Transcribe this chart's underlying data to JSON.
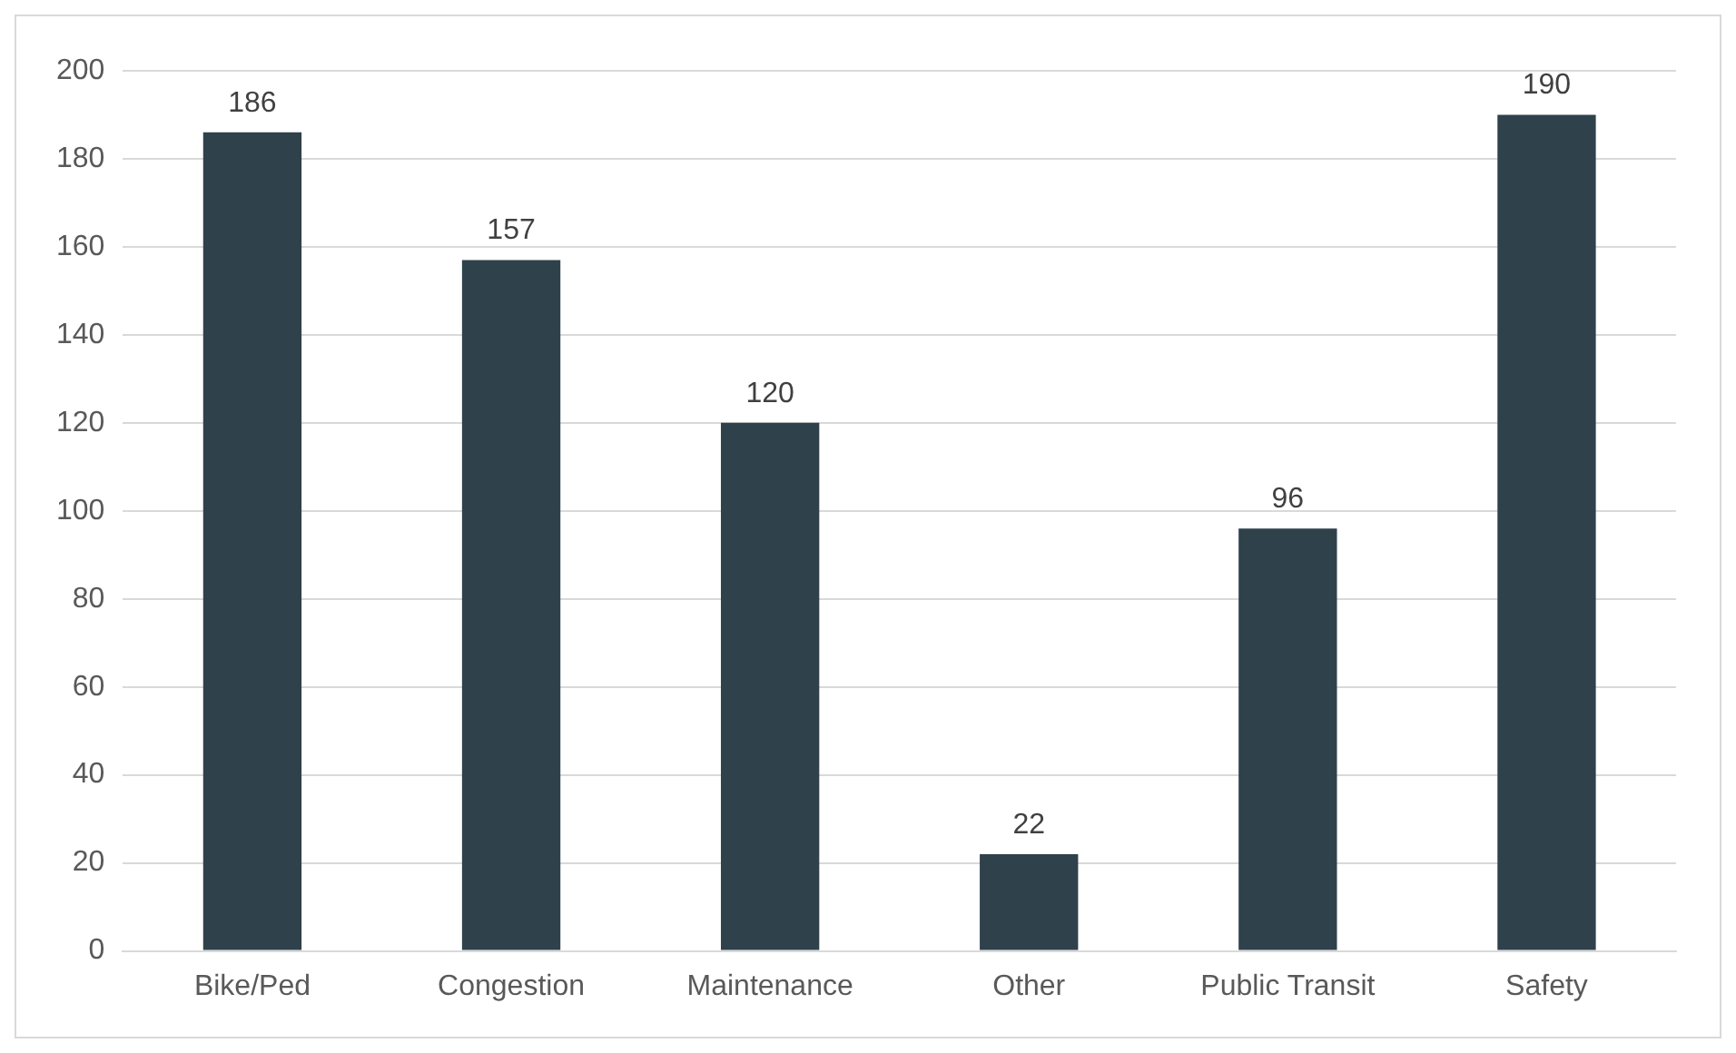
{
  "chart_data": {
    "type": "bar",
    "categories": [
      "Bike/Ped",
      "Congestion",
      "Maintenance",
      "Other",
      "Public Transit",
      "Safety"
    ],
    "values": [
      186,
      157,
      120,
      22,
      96,
      190
    ],
    "color": "#2f414b",
    "ylim": [
      0,
      200
    ],
    "yticks": [
      0,
      20,
      40,
      60,
      80,
      100,
      120,
      140,
      160,
      180,
      200
    ],
    "grid": "y",
    "data_labels": true,
    "legend": false
  }
}
